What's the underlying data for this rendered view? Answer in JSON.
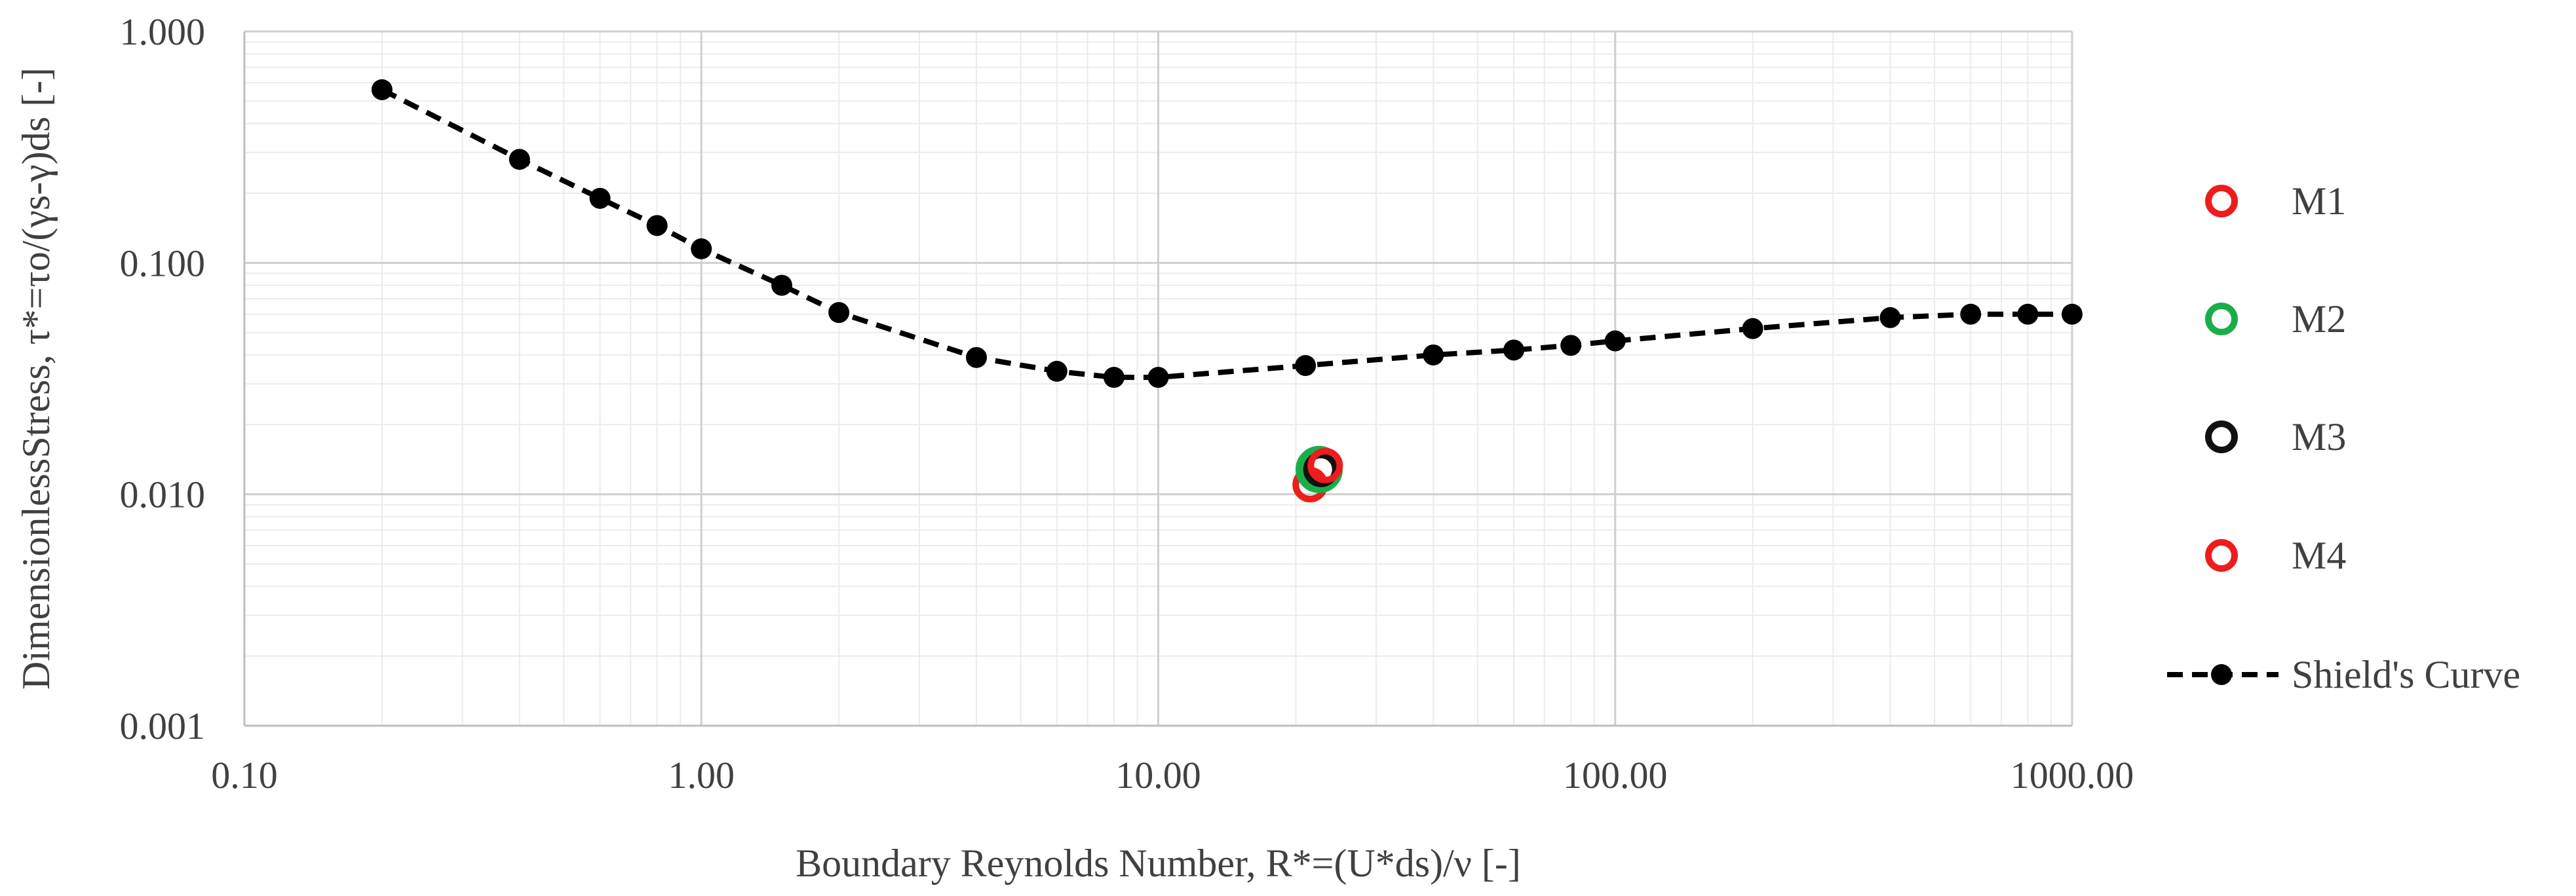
{
  "chart_data": {
    "type": "scatter",
    "xscale": "log",
    "yscale": "log",
    "xlim": [
      0.1,
      1000
    ],
    "ylim": [
      0.001,
      1
    ],
    "grid": true,
    "legend_position": "right",
    "xlabel": "Boundary Reynolds Number, R*=(U*ds)/ν [-]",
    "ylabel": "DimensionlessStress, τ*=τo/(γs-γ)ds [-]",
    "x_ticks": [
      {
        "value": 0.1,
        "label": "0.10"
      },
      {
        "value": 1,
        "label": "1.00"
      },
      {
        "value": 10,
        "label": "10.00"
      },
      {
        "value": 100,
        "label": "100.00"
      },
      {
        "value": 1000,
        "label": "1000.00"
      }
    ],
    "y_ticks": [
      {
        "value": 0.001,
        "label": "0.001"
      },
      {
        "value": 0.01,
        "label": "0.010"
      },
      {
        "value": 0.1,
        "label": "0.100"
      },
      {
        "value": 1,
        "label": "1.000"
      }
    ],
    "series": [
      {
        "name": "M1",
        "marker": "ring",
        "color": "#ee1c1c",
        "points": [
          {
            "x": 21.5,
            "y": 0.011
          }
        ]
      },
      {
        "name": "M2",
        "marker": "ring",
        "color": "#1aae4a",
        "points": [
          {
            "x": 22.5,
            "y": 0.0128
          }
        ]
      },
      {
        "name": "M3",
        "marker": "ring",
        "color": "#111111",
        "points": [
          {
            "x": 22.7,
            "y": 0.0128
          }
        ]
      },
      {
        "name": "M4",
        "marker": "ring",
        "color": "#ee1c1c",
        "points": [
          {
            "x": 23.2,
            "y": 0.0133
          }
        ]
      },
      {
        "name": "Shield's Curve",
        "marker": "dot-dashed-line",
        "color": "#000000",
        "points": [
          {
            "x": 0.2,
            "y": 0.56
          },
          {
            "x": 0.4,
            "y": 0.28
          },
          {
            "x": 0.6,
            "y": 0.19
          },
          {
            "x": 0.8,
            "y": 0.145
          },
          {
            "x": 1.0,
            "y": 0.115
          },
          {
            "x": 1.5,
            "y": 0.08
          },
          {
            "x": 2.0,
            "y": 0.061
          },
          {
            "x": 4.0,
            "y": 0.039
          },
          {
            "x": 6.0,
            "y": 0.034
          },
          {
            "x": 8.0,
            "y": 0.032
          },
          {
            "x": 10.0,
            "y": 0.032
          },
          {
            "x": 21.0,
            "y": 0.036
          },
          {
            "x": 40.0,
            "y": 0.04
          },
          {
            "x": 60.0,
            "y": 0.042
          },
          {
            "x": 80.0,
            "y": 0.044
          },
          {
            "x": 100.0,
            "y": 0.046
          },
          {
            "x": 200.0,
            "y": 0.052
          },
          {
            "x": 400.0,
            "y": 0.058
          },
          {
            "x": 600.0,
            "y": 0.06
          },
          {
            "x": 800.0,
            "y": 0.06
          },
          {
            "x": 1000.0,
            "y": 0.06
          }
        ]
      }
    ]
  }
}
